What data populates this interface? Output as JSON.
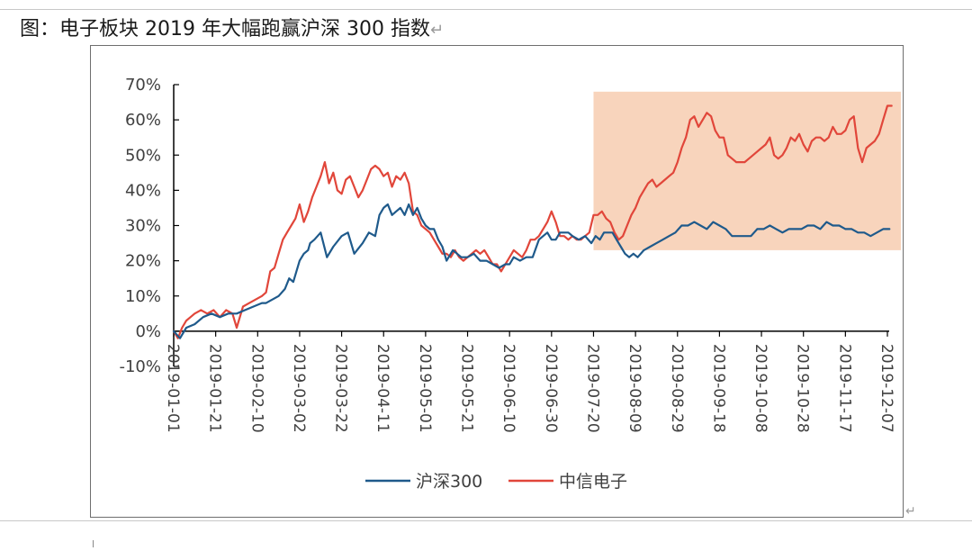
{
  "caption": {
    "title": "图：电子板块 2019 年大幅跑赢沪深 300 指数",
    "return_glyph": "↵"
  },
  "paragraph_mark": "↵",
  "colors": {
    "hs300": "#1f5a8b",
    "citic_electronics": "#e1463a",
    "highlight": "#f8d4bc"
  },
  "chart_data": {
    "type": "line",
    "title": "电子板块 2019 年大幅跑赢沪深 300 指数",
    "xlabel": "",
    "ylabel": "",
    "ylim": [
      -10,
      70
    ],
    "y_ticks": [
      "70%",
      "60%",
      "50%",
      "40%",
      "30%",
      "20%",
      "10%",
      "0%",
      "-10%"
    ],
    "y_tick_values": [
      70,
      60,
      50,
      40,
      30,
      20,
      10,
      0,
      -10
    ],
    "x_range": [
      0,
      340
    ],
    "x_ticks": [
      "2019-01-01",
      "2019-01-21",
      "2019-02-10",
      "2019-03-02",
      "2019-03-22",
      "2019-04-11",
      "2019-05-01",
      "2019-05-21",
      "2019-06-10",
      "2019-06-30",
      "2019-07-20",
      "2019-08-09",
      "2019-08-29",
      "2019-09-18",
      "2019-10-08",
      "2019-10-28",
      "2019-11-17",
      "2019-12-07"
    ],
    "x_tick_days": [
      0,
      20,
      40,
      60,
      80,
      100,
      120,
      140,
      160,
      180,
      200,
      220,
      240,
      260,
      280,
      300,
      320,
      340
    ],
    "highlight_region": {
      "x_start_day": 200,
      "x_end_day": 348,
      "y_low": 23,
      "y_high": 68
    },
    "legend_position": "bottom",
    "series": [
      {
        "name": "沪深300",
        "x": [
          0,
          3,
          6,
          10,
          14,
          18,
          22,
          26,
          30,
          34,
          38,
          42,
          44,
          47,
          50,
          53,
          55,
          57,
          60,
          62,
          64,
          65,
          67,
          70,
          73,
          76,
          80,
          83,
          86,
          90,
          93,
          96,
          98,
          100,
          102,
          104,
          106,
          108,
          110,
          112,
          114,
          116,
          118,
          120,
          122,
          124,
          126,
          128,
          130,
          131,
          133,
          135,
          137,
          140,
          143,
          146,
          149,
          152,
          155,
          158,
          160,
          162,
          165,
          168,
          171,
          174,
          176,
          178,
          180,
          182,
          184,
          186,
          188,
          190,
          193,
          196,
          199,
          201,
          203,
          205,
          207,
          209,
          211,
          213,
          215,
          217,
          219,
          221,
          224,
          227,
          230,
          233,
          236,
          239,
          242,
          245,
          248,
          251,
          254,
          257,
          260,
          263,
          266,
          269,
          272,
          275,
          278,
          281,
          284,
          287,
          290,
          293,
          296,
          299,
          302,
          305,
          308,
          311,
          314,
          317,
          320,
          323,
          326,
          329,
          332,
          335,
          338,
          341
        ],
        "values": [
          0,
          -2,
          1,
          2,
          4,
          5,
          4,
          5,
          5,
          6,
          7,
          8,
          8,
          9,
          10,
          12,
          15,
          14,
          20,
          22,
          23,
          25,
          26,
          28,
          21,
          24,
          27,
          28,
          22,
          25,
          28,
          27,
          33,
          35,
          36,
          33,
          34,
          35,
          33,
          36,
          33,
          35,
          32,
          30,
          29,
          29,
          26,
          24,
          20,
          21,
          23,
          22,
          21,
          21,
          22,
          20,
          20,
          19,
          18,
          19,
          19,
          21,
          20,
          21,
          21,
          26,
          27,
          28,
          26,
          26,
          28,
          28,
          28,
          27,
          26,
          27,
          25,
          27,
          26,
          28,
          28,
          28,
          26,
          24,
          22,
          21,
          22,
          21,
          23,
          24,
          25,
          26,
          27,
          28,
          30,
          30,
          31,
          30,
          29,
          31,
          30,
          29,
          27,
          27,
          27,
          27,
          29,
          29,
          30,
          29,
          28,
          29,
          29,
          29,
          30,
          30,
          29,
          31,
          30,
          30,
          29,
          29,
          28,
          28,
          27,
          28,
          29,
          29
        ]
      },
      {
        "name": "中信电子",
        "x": [
          0,
          2,
          4,
          6,
          8,
          10,
          13,
          16,
          19,
          22,
          25,
          28,
          30,
          33,
          36,
          39,
          42,
          44,
          46,
          48,
          50,
          52,
          54,
          56,
          58,
          60,
          62,
          64,
          66,
          68,
          70,
          72,
          74,
          76,
          78,
          80,
          82,
          84,
          86,
          88,
          90,
          92,
          94,
          96,
          98,
          100,
          102,
          104,
          106,
          108,
          110,
          112,
          114,
          116,
          118,
          120,
          122,
          124,
          126,
          128,
          130,
          132,
          134,
          136,
          138,
          140,
          142,
          144,
          146,
          148,
          150,
          152,
          154,
          156,
          158,
          160,
          162,
          164,
          166,
          168,
          170,
          172,
          174,
          176,
          178,
          180,
          182,
          184,
          186,
          188,
          190,
          192,
          194,
          196,
          198,
          200,
          202,
          204,
          206,
          208,
          210,
          212,
          214,
          216,
          218,
          220,
          222,
          224,
          226,
          228,
          230,
          232,
          234,
          236,
          238,
          240,
          242,
          244,
          246,
          248,
          250,
          252,
          254,
          256,
          258,
          260,
          262,
          264,
          266,
          268,
          270,
          272,
          274,
          276,
          278,
          280,
          282,
          284,
          286,
          288,
          290,
          292,
          294,
          296,
          298,
          300,
          302,
          304,
          306,
          308,
          310,
          312,
          314,
          316,
          318,
          320,
          322,
          324,
          326,
          328,
          330,
          332,
          334,
          336,
          338,
          340,
          342
        ],
        "values": [
          0,
          -2,
          1,
          3,
          4,
          5,
          6,
          5,
          6,
          4,
          6,
          5,
          1,
          7,
          8,
          9,
          10,
          11,
          17,
          18,
          22,
          26,
          28,
          30,
          32,
          36,
          31,
          34,
          38,
          41,
          44,
          48,
          42,
          45,
          40,
          39,
          43,
          44,
          41,
          38,
          40,
          43,
          46,
          47,
          46,
          44,
          45,
          41,
          44,
          43,
          45,
          42,
          34,
          33,
          30,
          29,
          28,
          26,
          24,
          22,
          22,
          21,
          23,
          21,
          20,
          21,
          22,
          23,
          22,
          23,
          21,
          19,
          19,
          17,
          19,
          21,
          23,
          22,
          21,
          23,
          26,
          26,
          27,
          29,
          31,
          34,
          31,
          27,
          27,
          26,
          27,
          26,
          26,
          27,
          28,
          33,
          33,
          34,
          32,
          31,
          28,
          26,
          27,
          30,
          33,
          35,
          38,
          40,
          42,
          43,
          41,
          42,
          43,
          44,
          45,
          48,
          52,
          55,
          60,
          61,
          58,
          60,
          62,
          61,
          57,
          55,
          55,
          50,
          49,
          48,
          48,
          48,
          49,
          50,
          51,
          52,
          53,
          55,
          50,
          49,
          50,
          52,
          55,
          54,
          56,
          53,
          51,
          54,
          55,
          55,
          54,
          55,
          58,
          56,
          56,
          57,
          60,
          61,
          52,
          48,
          52,
          53,
          54,
          56,
          60,
          64,
          64
        ]
      }
    ]
  }
}
